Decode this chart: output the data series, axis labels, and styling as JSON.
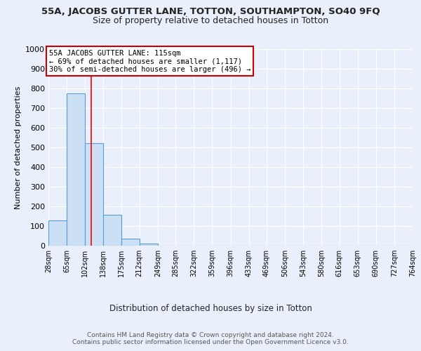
{
  "title_line1": "55A, JACOBS GUTTER LANE, TOTTON, SOUTHAMPTON, SO40 9FQ",
  "title_line2": "Size of property relative to detached houses in Totton",
  "xlabel": "Distribution of detached houses by size in Totton",
  "ylabel": "Number of detached properties",
  "footer_line1": "Contains HM Land Registry data © Crown copyright and database right 2024.",
  "footer_line2": "Contains public sector information licensed under the Open Government Licence v3.0.",
  "annotation_line1": "55A JACOBS GUTTER LANE: 115sqm",
  "annotation_line2": "← 69% of detached houses are smaller (1,117)",
  "annotation_line3": "30% of semi-detached houses are larger (496) →",
  "bin_edges": [
    28,
    65,
    102,
    138,
    175,
    212,
    249,
    285,
    322,
    359,
    396,
    433,
    469,
    506,
    543,
    580,
    616,
    653,
    690,
    727,
    764
  ],
  "bar_heights": [
    130,
    775,
    520,
    157,
    37,
    12,
    0,
    0,
    0,
    0,
    0,
    0,
    0,
    0,
    0,
    0,
    0,
    0,
    0,
    0
  ],
  "bar_color": "#cce0f5",
  "bar_edge_color": "#5b9bd5",
  "bar_edge_width": 0.8,
  "red_line_x": 115,
  "ylim": [
    0,
    1000
  ],
  "yticks": [
    0,
    100,
    200,
    300,
    400,
    500,
    600,
    700,
    800,
    900,
    1000
  ],
  "bg_color": "#eaf0fb",
  "plot_bg_color": "#eaf0fb",
  "grid_color": "#ffffff",
  "annotation_box_color": "#ffffff",
  "annotation_box_edge_color": "#cc0000"
}
